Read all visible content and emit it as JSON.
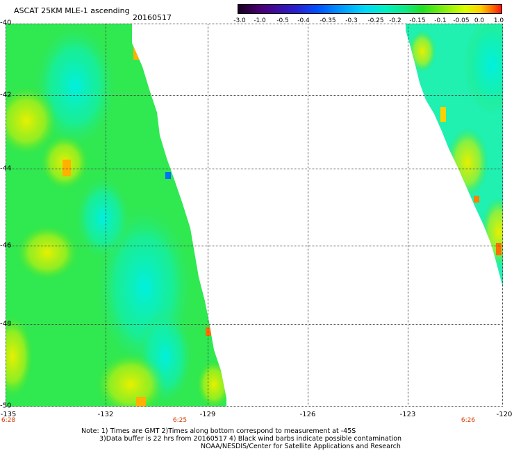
{
  "header": {
    "title": "ASCAT 25KM MLE-1 ascending",
    "date": "20160517"
  },
  "colorbar": {
    "labels": [
      "-3.0",
      "-1.0",
      "-0.5",
      "-0.4",
      "-0.35",
      "-0.3",
      "-0.25",
      "-0.2",
      "-0.15",
      "-0.1",
      "-0.05",
      "0.0",
      "1.0"
    ],
    "colors": [
      "#1a0020",
      "#4b007a",
      "#2a1fd0",
      "#0050ff",
      "#0090ff",
      "#00d8f8",
      "#00f0c0",
      "#10e880",
      "#20e020",
      "#80ee10",
      "#d8ff00",
      "#ffd000",
      "#ff1010"
    ]
  },
  "axes": {
    "lat_labels": [
      "-40",
      "-42",
      "-44",
      "-46",
      "-48",
      "-50"
    ],
    "lon_labels": [
      "-135",
      "-132",
      "-129",
      "-126",
      "-123",
      "-120"
    ],
    "time_labels": [
      "6:28",
      "6:25",
      "6:26"
    ]
  },
  "notes": {
    "line1": "Note: 1) Times are GMT 2)Times along bottom correspond to measurement at -45S",
    "line2": "3)Data buffer is 22 hrs from 20160517 4) Black wind barbs indicate possible contamination",
    "line3": "NOAA/NESDIS/Center for Satellite Applications and Research"
  }
}
